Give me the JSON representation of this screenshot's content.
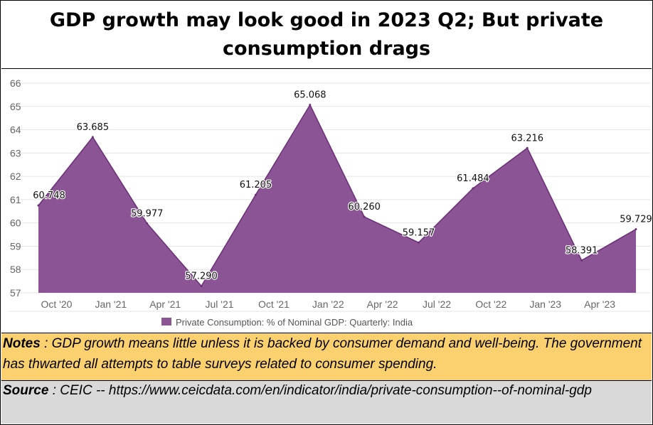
{
  "title": "GDP growth may look good in 2023 Q2; But private consumption drags",
  "notes": {
    "label": "Notes",
    "separator": " : ",
    "text": "GDP growth means little unless it is backed by consumer demand and well-being.   The government has thwarted all attempts to table surveys related to consumer spending."
  },
  "source": {
    "label": "Source",
    "separator": " : ",
    "text": "CEIC -- https://www.ceicdata.com/en/indicator/india/private-consumption--of-nominal-gdp"
  },
  "chart_data": {
    "type": "area",
    "title": "",
    "xlabel": "",
    "ylabel": "",
    "x": [
      "2020-09",
      "2020-12",
      "2021-03",
      "2021-06",
      "2021-09",
      "2021-12",
      "2022-03",
      "2022-06",
      "2022-09",
      "2022-12",
      "2023-03",
      "2023-06"
    ],
    "tick_labels": [
      "Oct '20",
      "Jan '21",
      "Apr '21",
      "Jul '21",
      "Oct '21",
      "Jan '22",
      "Apr '22",
      "Jul '22",
      "Oct '22",
      "Jan '23",
      "Apr '23"
    ],
    "tick_positions": [
      "2020-10",
      "2021-01",
      "2021-04",
      "2021-07",
      "2021-10",
      "2022-01",
      "2022-04",
      "2022-07",
      "2022-10",
      "2023-01",
      "2023-04"
    ],
    "series": [
      {
        "name": "Private Consumption: % of Nominal GDP: Quarterly: India",
        "values": [
          60.748,
          63.685,
          59.977,
          57.29,
          61.205,
          65.068,
          60.26,
          59.157,
          61.484,
          63.216,
          58.391,
          59.729
        ]
      }
    ],
    "data_labels": [
      "60.748",
      "63.685",
      "59.977",
      "57.290",
      "61.205",
      "65.068",
      "60.260",
      "59.157",
      "61.484",
      "63.216",
      "58.391",
      "59.729"
    ],
    "ylim": [
      57,
      66
    ],
    "yticks": [
      57,
      58,
      59,
      60,
      61,
      62,
      63,
      64,
      65,
      66
    ],
    "grid": true,
    "legend": "bottom-center",
    "colors": {
      "fill": "#8b5494",
      "line": "#6b2f78",
      "grid": "#e4e4e4",
      "tick_text": "#666666"
    }
  }
}
